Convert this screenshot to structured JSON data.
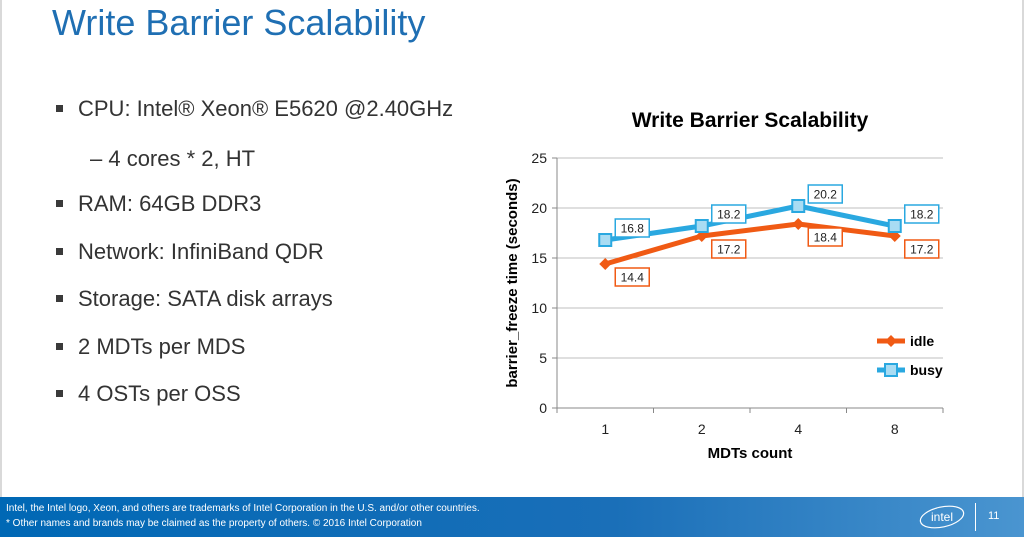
{
  "slide": {
    "title": "Write Barrier Scalability",
    "bullets": [
      "CPU: Intel® Xeon® E5620 @2.40GHz",
      "RAM: 64GB DDR3",
      "Network: InfiniBand QDR",
      "Storage: SATA disk arrays",
      "2 MDTs per MDS",
      "4 OSTs per OSS"
    ],
    "sub_bullet": "– 4 cores * 2, HT",
    "footer_line1": "Intel, the Intel logo, Xeon, and others are trademarks of Intel Corporation in the U.S. and/or other countries.",
    "footer_line2": "* Other names and brands may be claimed as the property of others. © 2016 Intel Corporation",
    "logo_text": "intel",
    "page_number": "11"
  },
  "chart_data": {
    "type": "line",
    "title": "Write Barrier Scalability",
    "xlabel": "MDTs count",
    "ylabel": "barrier_freeze time (seconds)",
    "categories": [
      "1",
      "2",
      "4",
      "8"
    ],
    "ylim": [
      0,
      25
    ],
    "yticks": [
      0,
      5,
      10,
      15,
      20,
      25
    ],
    "grid": true,
    "legend": "right",
    "series": [
      {
        "name": "idle",
        "values": [
          14.4,
          17.2,
          18.4,
          17.2
        ],
        "color": "#f05a14",
        "marker": "diamond"
      },
      {
        "name": "busy",
        "values": [
          16.8,
          18.2,
          20.2,
          18.2
        ],
        "color": "#2aa8e0",
        "marker": "square"
      }
    ]
  },
  "colors": {
    "title": "#1f6fb3",
    "footer": "#0068b5"
  }
}
